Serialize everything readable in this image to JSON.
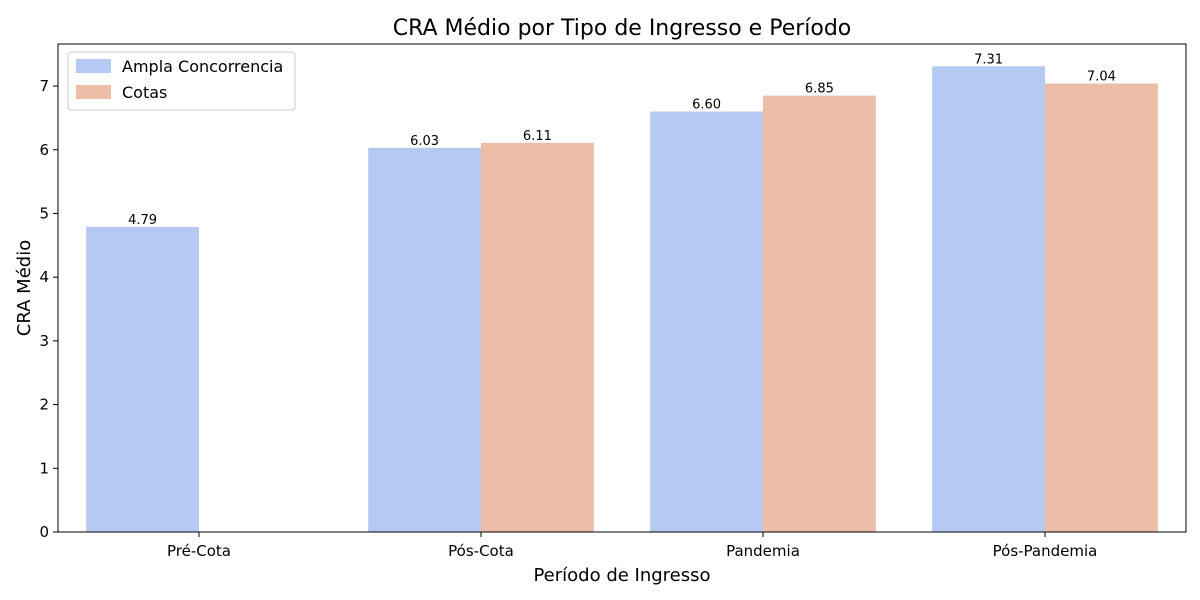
{
  "chart_data": {
    "type": "bar",
    "title": "CRA Médio por Tipo de Ingresso e Período",
    "xlabel": "Período de Ingresso",
    "ylabel": "CRA Médio",
    "categories": [
      "Pré-Cota",
      "Pós-Cota",
      "Pandemia",
      "Pós-Pandemia"
    ],
    "series": [
      {
        "name": "Ampla Concorrencia",
        "color": "#b5c9f3",
        "values": [
          4.79,
          6.03,
          6.6,
          7.31
        ],
        "labels": [
          "4.79",
          "6.03",
          "6.60",
          "7.31"
        ]
      },
      {
        "name": "Cotas",
        "color": "#ecbda7",
        "values": [
          null,
          6.11,
          6.85,
          7.04
        ],
        "labels": [
          null,
          "6.11",
          "6.85",
          "7.04"
        ]
      }
    ],
    "ylim": [
      0,
      7.66
    ],
    "yticks": [
      0,
      1,
      2,
      3,
      4,
      5,
      6,
      7
    ],
    "grid": false,
    "legend_position": "top-left"
  }
}
